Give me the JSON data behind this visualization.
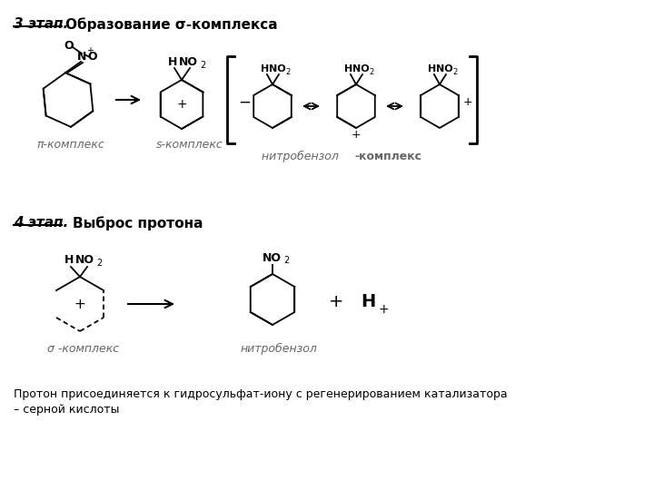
{
  "title1": "3 этап.",
  "title1_rest": "  Образование σ-комплекса",
  "title2": "4 этап.",
  "title2_rest": "    Выброс протона",
  "label_pi": "π-комплекс",
  "label_s": "s-комплекс",
  "label_nitro_italic": "нитробензол ",
  "label_nitro_bold": "-комплекс",
  "label_sigma": "σ -комплекс",
  "label_nitrobenzol": "нитробензол",
  "footnote_line1": "Протон присоединяется к гидросульфат-иону с регенерированием катализатора",
  "footnote_line2": "– серной кислоты",
  "bg_color": "#ffffff",
  "line_color": "#000000",
  "label_color": "#666666"
}
